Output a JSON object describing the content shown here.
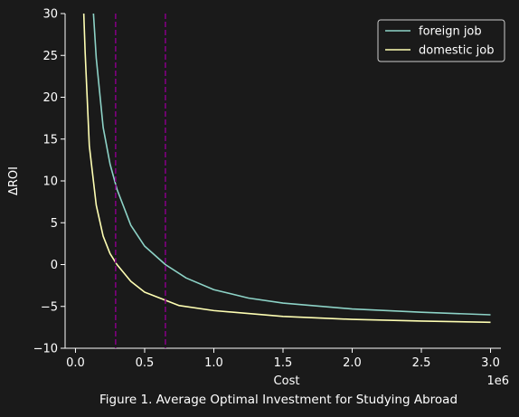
{
  "caption": "Figure 1. Average Optimal Investment for Studying Abroad",
  "chart_data": {
    "type": "line",
    "xlabel": "Cost",
    "ylabel": "ΔROI",
    "x_offset_text": "1e6",
    "xlim": [
      -0.075,
      3.075
    ],
    "ylim": [
      -10,
      30
    ],
    "x_ticks": [
      0.0,
      0.5,
      1.0,
      1.5,
      2.0,
      2.5,
      3.0
    ],
    "x_tick_labels": [
      "0.0",
      "0.5",
      "1.0",
      "1.5",
      "2.0",
      "2.5",
      "3.0"
    ],
    "y_ticks": [
      -10,
      -5,
      0,
      5,
      10,
      15,
      20,
      25,
      30
    ],
    "y_tick_labels": [
      "−10",
      "−5",
      "0",
      "5",
      "10",
      "15",
      "20",
      "25",
      "30"
    ],
    "grid": false,
    "legend_position": "top-right",
    "series": [
      {
        "name": "foreign job",
        "color": "#8dd3c7",
        "x": [
          0.13,
          0.15,
          0.2,
          0.25,
          0.3,
          0.4,
          0.5,
          0.65,
          0.8,
          1.0,
          1.25,
          1.5,
          2.0,
          2.5,
          3.0
        ],
        "y": [
          30.0,
          24.7,
          16.4,
          12.0,
          9.0,
          4.7,
          2.2,
          0.0,
          -1.6,
          -3.0,
          -4.0,
          -4.6,
          -5.3,
          -5.7,
          -6.0
        ]
      },
      {
        "name": "domestic job",
        "color": "#ffffb3",
        "x": [
          0.06,
          0.07,
          0.1,
          0.15,
          0.2,
          0.25,
          0.3,
          0.4,
          0.5,
          0.75,
          1.0,
          1.5,
          2.0,
          2.5,
          3.0
        ],
        "y": [
          30.0,
          25.3,
          14.2,
          7.1,
          3.4,
          1.3,
          0.0,
          -2.0,
          -3.3,
          -4.9,
          -5.5,
          -6.2,
          -6.55,
          -6.75,
          -6.9
        ]
      }
    ],
    "vertical_lines": [
      {
        "x": 0.29,
        "color": "#800080",
        "style": "dashed"
      },
      {
        "x": 0.65,
        "color": "#800080",
        "style": "dashed"
      }
    ]
  }
}
